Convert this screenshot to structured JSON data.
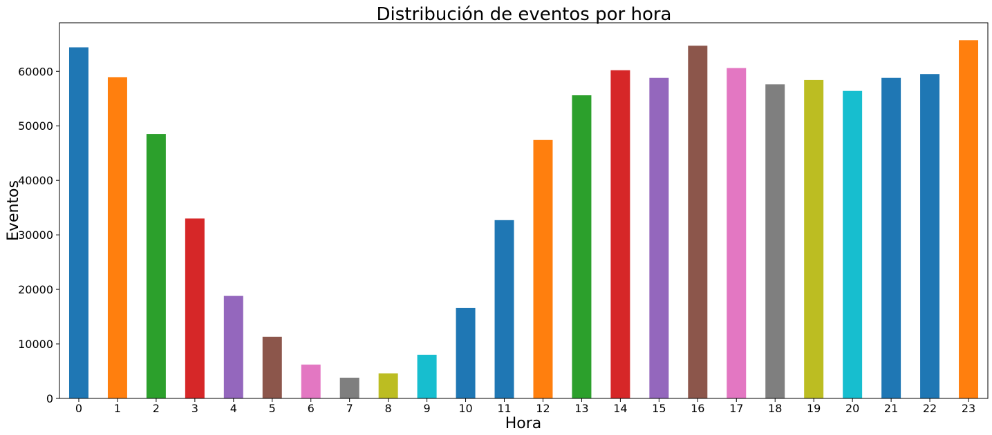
{
  "chart_data": {
    "type": "bar",
    "title": "Distribución de eventos por hora",
    "xlabel": "Hora",
    "ylabel": "Eventos",
    "categories": [
      "0",
      "1",
      "2",
      "3",
      "4",
      "5",
      "6",
      "7",
      "8",
      "9",
      "10",
      "11",
      "12",
      "13",
      "14",
      "15",
      "16",
      "17",
      "18",
      "19",
      "20",
      "21",
      "22",
      "23"
    ],
    "values": [
      64400,
      58900,
      48500,
      33000,
      18800,
      11300,
      6200,
      3800,
      4600,
      8000,
      16600,
      32700,
      47400,
      55600,
      60200,
      58800,
      64700,
      60600,
      57600,
      58400,
      56400,
      58800,
      59500,
      65700
    ],
    "colors": [
      "#1f77b4",
      "#ff7f0e",
      "#2ca02c",
      "#d62728",
      "#9467bd",
      "#8c564b",
      "#e377c2",
      "#7f7f7f",
      "#bcbd22",
      "#17becf",
      "#1f77b4",
      "#1f77b4",
      "#ff7f0e",
      "#2ca02c",
      "#d62728",
      "#9467bd",
      "#8c564b",
      "#e377c2",
      "#7f7f7f",
      "#bcbd22",
      "#17becf",
      "#1f77b4",
      "#1f77b4",
      "#ff7f0e"
    ],
    "ylim": [
      0,
      68900
    ],
    "yticks": [
      0,
      10000,
      20000,
      30000,
      40000,
      50000,
      60000
    ],
    "grid": false,
    "legend": "none"
  }
}
